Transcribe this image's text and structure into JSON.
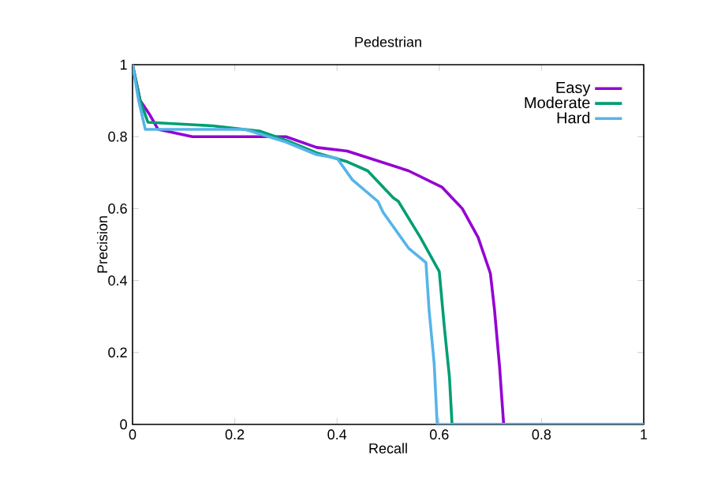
{
  "chart_data": {
    "type": "line",
    "title": "Pedestrian",
    "xlabel": "Recall",
    "ylabel": "Precision",
    "xlim": [
      0,
      1
    ],
    "ylim": [
      0,
      1
    ],
    "xticks": [
      0,
      0.2,
      0.4,
      0.6,
      0.8,
      1
    ],
    "yticks": [
      0,
      0.2,
      0.4,
      0.6,
      0.8,
      1
    ],
    "legend": "top right",
    "grid": false,
    "marker": "none",
    "line_style": "solid",
    "series": [
      {
        "name": "Easy",
        "color": "#9400d3",
        "x": [
          0,
          0.015,
          0.034,
          0.05,
          0.117,
          0.2,
          0.3,
          0.36,
          0.42,
          0.54,
          0.605,
          0.645,
          0.676,
          0.7,
          0.708,
          0.718,
          0.726,
          0.85,
          1
        ],
        "values": [
          1,
          0.9,
          0.86,
          0.82,
          0.8,
          0.8,
          0.8,
          0.77,
          0.76,
          0.705,
          0.66,
          0.6,
          0.52,
          0.42,
          0.32,
          0.16,
          0,
          0,
          0
        ]
      },
      {
        "name": "Moderate",
        "color": "#009e73",
        "x": [
          0,
          0.015,
          0.03,
          0.157,
          0.25,
          0.3,
          0.36,
          0.42,
          0.46,
          0.51,
          0.52,
          0.563,
          0.6,
          0.61,
          0.62,
          0.625,
          0.8,
          1
        ],
        "values": [
          1,
          0.9,
          0.84,
          0.83,
          0.815,
          0.79,
          0.755,
          0.73,
          0.705,
          0.63,
          0.62,
          0.52,
          0.425,
          0.27,
          0.13,
          0,
          0,
          0
        ]
      },
      {
        "name": "Hard",
        "color": "#56b4e9",
        "x": [
          0,
          0.012,
          0.025,
          0.22,
          0.3,
          0.36,
          0.4,
          0.43,
          0.48,
          0.49,
          0.54,
          0.574,
          0.58,
          0.59,
          0.596,
          0.8,
          1
        ],
        "values": [
          1,
          0.9,
          0.82,
          0.82,
          0.785,
          0.75,
          0.74,
          0.68,
          0.62,
          0.59,
          0.49,
          0.45,
          0.32,
          0.17,
          0,
          0,
          0
        ]
      }
    ]
  }
}
